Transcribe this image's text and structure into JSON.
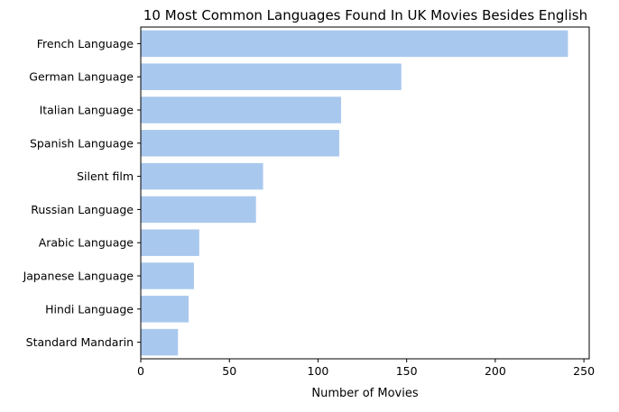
{
  "chart_data": {
    "type": "bar",
    "orientation": "horizontal",
    "title": "10 Most Common Languages Found In UK Movies Besides English",
    "xlabel": "Number of Movies",
    "ylabel": "",
    "categories": [
      "French Language",
      "German Language",
      "Italian Language",
      "Spanish Language",
      "Silent film",
      "Russian Language",
      "Arabic Language",
      "Japanese Language",
      "Hindi Language",
      "Standard Mandarin"
    ],
    "values": [
      241,
      147,
      113,
      112,
      69,
      65,
      33,
      30,
      27,
      21
    ],
    "xlim": [
      0,
      253
    ],
    "xticks": [
      0,
      50,
      100,
      150,
      200,
      250
    ],
    "grid": false,
    "legend": "none",
    "colors": {
      "bar": "#a9c8ee",
      "axis": "#000000",
      "background": "#ffffff"
    }
  }
}
